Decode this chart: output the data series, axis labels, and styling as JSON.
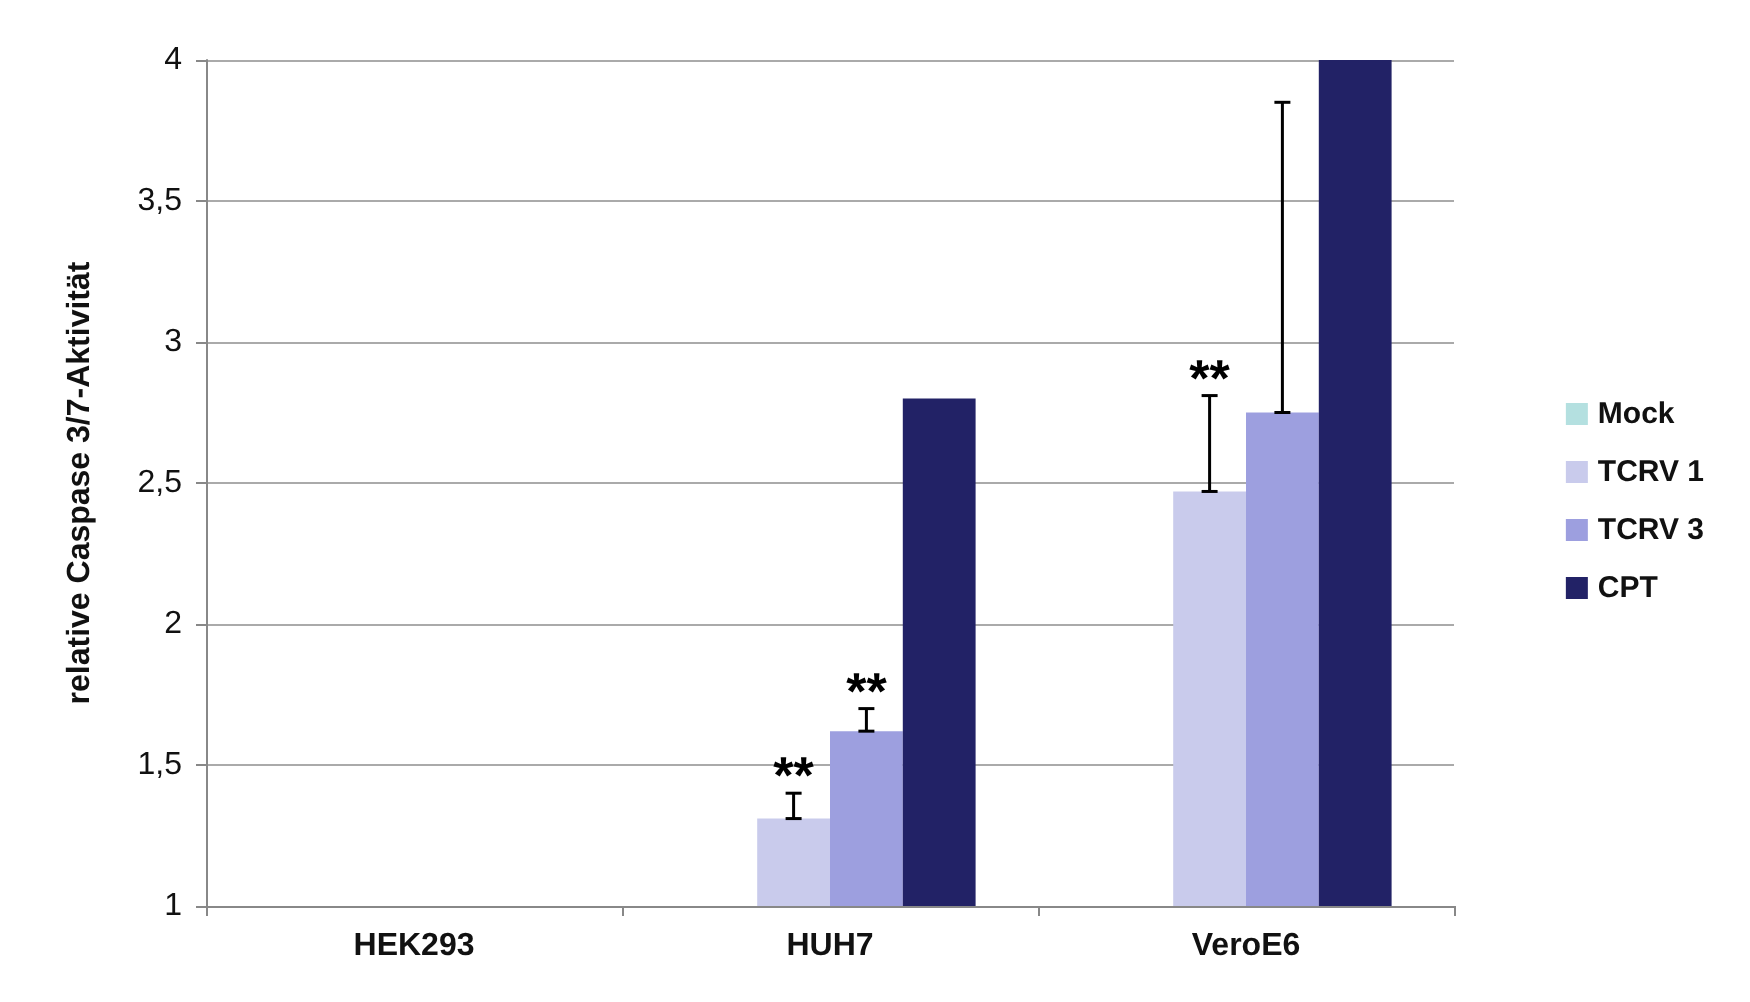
{
  "chart_data": {
    "type": "bar",
    "ylabel": "relative Caspase 3/7-Aktivität",
    "categories": [
      "HEK293",
      "HUH7",
      "VeroE6"
    ],
    "series": [
      {
        "name": "Mock",
        "color": "#b4e0e0",
        "values": [
          1,
          1,
          1
        ]
      },
      {
        "name": "TCRV 1",
        "color": "#c9cbec",
        "values": [
          1,
          1.31,
          2.47
        ],
        "errors": [
          null,
          [
            1.31,
            1.4
          ],
          [
            2.47,
            2.81
          ]
        ]
      },
      {
        "name": "TCRV 3",
        "color": "#9d9fdf",
        "values": [
          1,
          1.62,
          2.75
        ],
        "errors": [
          null,
          [
            1.62,
            1.7
          ],
          [
            2.75,
            3.85
          ]
        ]
      },
      {
        "name": "CPT",
        "color": "#222266",
        "values": [
          1,
          2.8,
          4
        ]
      }
    ],
    "ylim": [
      1,
      4
    ],
    "yticks": [
      1,
      {
        "value": 1.5,
        "label": "1,5"
      },
      2,
      {
        "value": 2.5,
        "label": "2,5"
      },
      3,
      {
        "value": 3.5,
        "label": "3,5"
      },
      4
    ],
    "grid": "y",
    "legend": "right",
    "annotations": [
      {
        "text": "**",
        "x": "HUH7",
        "y": 1.31
      },
      {
        "text": "**",
        "x": "HUH7",
        "y": 1.62
      },
      {
        "text": "**",
        "x": "VeroE6",
        "y": 2.47
      }
    ]
  }
}
